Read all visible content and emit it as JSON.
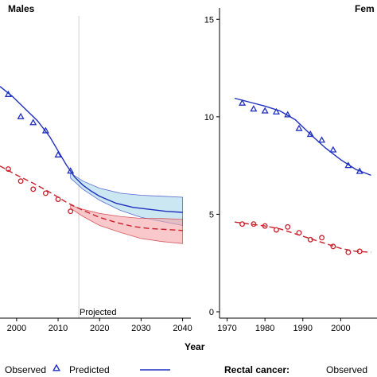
{
  "chart_data": [
    {
      "type": "line",
      "title": "Males",
      "xlabel": "Year",
      "x_ticks": [
        2000,
        2010,
        2020,
        2030,
        2040
      ],
      "xlim": [
        1996,
        2042
      ],
      "ylim": [
        0,
        15
      ],
      "projection_start": 2015,
      "projection_label": "Projected",
      "series": [
        {
          "group": "colon",
          "color": "#1f2fbf",
          "band_color": "#a9d8ea",
          "observed": [
            [
              1998,
              11.1
            ],
            [
              2001,
              10.0
            ],
            [
              2004,
              9.7
            ],
            [
              2007,
              9.3
            ],
            [
              2010,
              8.1
            ],
            [
              2013,
              7.3
            ]
          ],
          "predicted": [
            [
              1996,
              11.5
            ],
            [
              1999,
              11.0
            ],
            [
              2002,
              10.4
            ],
            [
              2005,
              9.8
            ],
            [
              2008,
              9.0
            ],
            [
              2010,
              8.3
            ],
            [
              2012,
              7.6
            ],
            [
              2014,
              7.0
            ],
            [
              2016,
              6.6
            ],
            [
              2018,
              6.3
            ],
            [
              2020,
              6.05
            ],
            [
              2024,
              5.7
            ],
            [
              2028,
              5.5
            ],
            [
              2032,
              5.4
            ],
            [
              2036,
              5.3
            ],
            [
              2040,
              5.25
            ]
          ],
          "band_upper": [
            [
              2013,
              7.2
            ],
            [
              2016,
              6.8
            ],
            [
              2020,
              6.45
            ],
            [
              2025,
              6.2
            ],
            [
              2030,
              6.1
            ],
            [
              2035,
              6.05
            ],
            [
              2040,
              6.0
            ]
          ],
          "band_lower": [
            [
              2013,
              6.95
            ],
            [
              2016,
              6.4
            ],
            [
              2020,
              5.85
            ],
            [
              2025,
              5.35
            ],
            [
              2030,
              5.0
            ],
            [
              2035,
              4.8
            ],
            [
              2040,
              4.6
            ]
          ]
        },
        {
          "group": "rectal",
          "color": "#c8202a",
          "band_color": "#f4a3a6",
          "observed": [
            [
              1998,
              7.4
            ],
            [
              2001,
              6.8
            ],
            [
              2004,
              6.4
            ],
            [
              2007,
              6.2
            ],
            [
              2010,
              5.9
            ],
            [
              2013,
              5.3
            ]
          ],
          "predicted": [
            [
              1996,
              7.55
            ],
            [
              2000,
              7.1
            ],
            [
              2004,
              6.7
            ],
            [
              2008,
              6.25
            ],
            [
              2012,
              5.75
            ],
            [
              2016,
              5.35
            ],
            [
              2020,
              5.0
            ],
            [
              2024,
              4.75
            ],
            [
              2028,
              4.55
            ],
            [
              2032,
              4.45
            ],
            [
              2036,
              4.4
            ],
            [
              2040,
              4.35
            ]
          ],
          "band_upper": [
            [
              2013,
              5.6
            ],
            [
              2016,
              5.4
            ],
            [
              2020,
              5.2
            ],
            [
              2025,
              5.05
            ],
            [
              2030,
              4.95
            ],
            [
              2035,
              4.95
            ],
            [
              2040,
              4.9
            ]
          ],
          "band_lower": [
            [
              2013,
              5.45
            ],
            [
              2016,
              5.05
            ],
            [
              2020,
              4.6
            ],
            [
              2025,
              4.25
            ],
            [
              2030,
              3.95
            ],
            [
              2035,
              3.8
            ],
            [
              2040,
              3.7
            ]
          ]
        }
      ]
    },
    {
      "type": "line",
      "title": "Fem",
      "x_ticks": [
        1970,
        1980,
        1990,
        2000
      ],
      "xlim": [
        1968,
        2010
      ],
      "y_ticks": [
        0,
        5,
        10,
        15
      ],
      "ylim": [
        0,
        15.5
      ],
      "series": [
        {
          "group": "colon",
          "color": "#1f2fbf",
          "observed": [
            [
              1974,
              10.7
            ],
            [
              1977,
              10.4
            ],
            [
              1980,
              10.3
            ],
            [
              1983,
              10.25
            ],
            [
              1986,
              10.1
            ],
            [
              1989,
              9.4
            ],
            [
              1992,
              9.1
            ],
            [
              1995,
              8.8
            ],
            [
              1998,
              8.3
            ],
            [
              2002,
              7.5
            ],
            [
              2005,
              7.2
            ]
          ],
          "predicted": [
            [
              1972,
              10.95
            ],
            [
              1976,
              10.75
            ],
            [
              1980,
              10.55
            ],
            [
              1984,
              10.3
            ],
            [
              1988,
              9.85
            ],
            [
              1992,
              9.1
            ],
            [
              1996,
              8.4
            ],
            [
              2000,
              7.8
            ],
            [
              2004,
              7.3
            ],
            [
              2008,
              7.0
            ]
          ]
        },
        {
          "group": "rectal",
          "color": "#c8202a",
          "observed": [
            [
              1974,
              4.5
            ],
            [
              1977,
              4.5
            ],
            [
              1980,
              4.4
            ],
            [
              1983,
              4.2
            ],
            [
              1986,
              4.35
            ],
            [
              1989,
              4.05
            ],
            [
              1992,
              3.7
            ],
            [
              1995,
              3.8
            ],
            [
              1998,
              3.35
            ],
            [
              2002,
              3.05
            ],
            [
              2005,
              3.1
            ]
          ],
          "predicted": [
            [
              1972,
              4.6
            ],
            [
              1976,
              4.5
            ],
            [
              1980,
              4.4
            ],
            [
              1984,
              4.25
            ],
            [
              1988,
              4.0
            ],
            [
              1992,
              3.75
            ],
            [
              1996,
              3.5
            ],
            [
              2000,
              3.25
            ],
            [
              2004,
              3.1
            ],
            [
              2008,
              3.05
            ]
          ]
        }
      ]
    }
  ],
  "legend": {
    "items": [
      "Observed",
      "Predicted",
      "Rectal cancer:",
      "Observed"
    ]
  }
}
